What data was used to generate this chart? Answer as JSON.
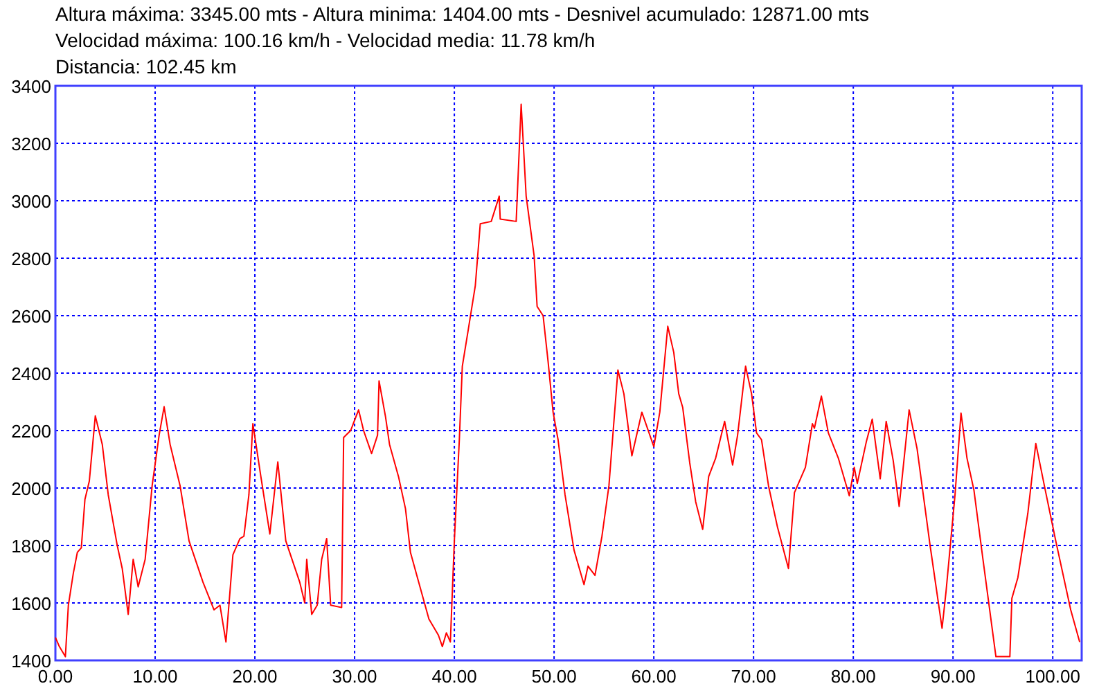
{
  "chart_data": {
    "type": "line",
    "title": "Altura máxima: 3345.00 mts - Altura minima: 1404.00 mts - Desnivel acumulado: 12871.00 mts",
    "subtitle": "Velocidad máxima: 100.16 km/h - Velocidad media: 11.78 km/h",
    "annotations": [
      "Distancia: 102.45 km"
    ],
    "x": [
      0,
      0.4,
      1.0,
      1.3,
      1.8,
      2.2,
      2.6,
      2.96,
      3.4,
      4.0,
      4.7,
      5.3,
      6.2,
      6.7,
      7.3,
      7.8,
      8.3,
      9.0,
      9.7,
      10.4,
      10.9,
      11.5,
      12.5,
      13.4,
      14.8,
      15.9,
      16.5,
      17.1,
      17.8,
      18.5,
      18.9,
      19.4,
      19.8,
      20.6,
      21.5,
      22.3,
      23.1,
      24.5,
      25.0,
      25.2,
      25.7,
      26.25,
      26.7,
      27.2,
      27.6,
      28.7,
      28.9,
      29.6,
      30.4,
      30.9,
      31.7,
      32.3,
      32.45,
      33.1,
      33.5,
      34.4,
      35.1,
      35.6,
      36.3,
      37.45,
      38.4,
      38.8,
      39.2,
      39.6,
      40.0,
      40.5,
      40.8,
      41.4,
      42.1,
      42.6,
      43.7,
      44.5,
      44.6,
      46.2,
      46.7,
      47.2,
      48.0,
      48.3,
      48.9,
      49.4,
      49.9,
      50.4,
      51.1,
      52.0,
      53.0,
      53.4,
      54.1,
      54.8,
      55.5,
      56.4,
      57.0,
      57.8,
      58.8,
      60.0,
      60.6,
      61.4,
      62.0,
      62.5,
      62.9,
      63.6,
      64.2,
      64.9,
      65.5,
      66.2,
      67.1,
      67.9,
      68.4,
      69.2,
      69.8,
      70.3,
      70.8,
      71.5,
      72.4,
      73.5,
      74.1,
      75.2,
      75.9,
      76.1,
      76.8,
      77.5,
      78.5,
      79.6,
      80.1,
      80.4,
      81.3,
      81.9,
      82.7,
      83.3,
      84.0,
      84.6,
      85.6,
      86.4,
      87.7,
      88.6,
      88.9,
      89.3,
      90.2,
      90.8,
      91.4,
      92.1,
      93.0,
      94.3,
      95.7,
      95.9,
      96.5,
      97.5,
      98.3,
      99.3,
      100.3,
      101.8,
      102.7
    ],
    "series": [
      {
        "color": "#ff0000",
        "values": [
          1480,
          1448,
          1413,
          1592,
          1704,
          1776,
          1792,
          1960,
          2024,
          2251,
          2152,
          1976,
          1800,
          1720,
          1560,
          1752,
          1656,
          1752,
          2008,
          2184,
          2283,
          2152,
          2008,
          1816,
          1672,
          1576,
          1592,
          1464,
          1768,
          1824,
          1832,
          1976,
          2224,
          2040,
          1840,
          2091,
          1816,
          1672,
          1600,
          1752,
          1560,
          1592,
          1752,
          1824,
          1592,
          1584,
          2176,
          2200,
          2272,
          2200,
          2120,
          2184,
          2373,
          2248,
          2152,
          2040,
          1928,
          1776,
          1688,
          1544,
          1488,
          1448,
          1496,
          1464,
          1816,
          2168,
          2424,
          2552,
          2704,
          2920,
          2928,
          3016,
          2936,
          2928,
          3336,
          3016,
          2808,
          2632,
          2600,
          2440,
          2264,
          2168,
          1976,
          1784,
          1664,
          1728,
          1696,
          1832,
          2008,
          2411,
          2328,
          2112,
          2264,
          2144,
          2264,
          2563,
          2472,
          2328,
          2280,
          2088,
          1952,
          1856,
          2040,
          2104,
          2232,
          2080,
          2184,
          2424,
          2328,
          2192,
          2168,
          2008,
          1864,
          1720,
          1984,
          2072,
          2224,
          2208,
          2320,
          2192,
          2104,
          1973,
          2072,
          2016,
          2160,
          2240,
          2032,
          2232,
          2096,
          1936,
          2272,
          2136,
          1800,
          1584,
          1512,
          1640,
          1976,
          2261,
          2104,
          1992,
          1752,
          1413,
          1413,
          1616,
          1688,
          1912,
          2155,
          1984,
          1816,
          1576,
          1464
        ]
      }
    ],
    "xlim": [
      0,
      102.9
    ],
    "xticks": [
      {
        "value": 0,
        "label": "0.00"
      },
      {
        "value": 10,
        "label": "10.00"
      },
      {
        "value": 20,
        "label": "20.00"
      },
      {
        "value": 30,
        "label": "30.00"
      },
      {
        "value": 40,
        "label": "40.00"
      },
      {
        "value": 50,
        "label": "50.00"
      },
      {
        "value": 60,
        "label": "60.00"
      },
      {
        "value": 70,
        "label": "70.00"
      },
      {
        "value": 80,
        "label": "80.00"
      },
      {
        "value": 90,
        "label": "90.00"
      },
      {
        "value": 100,
        "label": "100.00"
      }
    ],
    "ylim": [
      1400,
      3400
    ],
    "yticks": [
      1400,
      1600,
      1800,
      2000,
      2200,
      2400,
      2600,
      2800,
      3000,
      3200,
      3400
    ],
    "grid": true,
    "marker": "none",
    "line_style": "solid"
  }
}
